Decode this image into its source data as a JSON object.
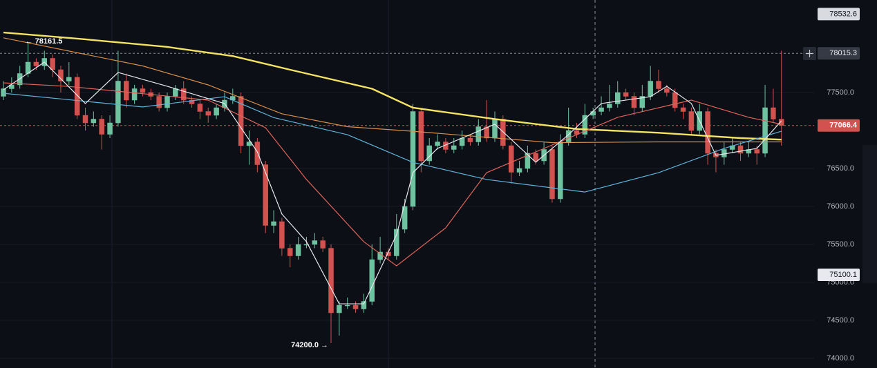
{
  "chart_data": {
    "type": "candlestick",
    "up_color": "#6fc2a0",
    "down_color": "#d2524f",
    "ylim": [
      73873,
      78718
    ],
    "yticks": [
      {
        "value": 77500,
        "label": "77500.0"
      },
      {
        "value": 76500,
        "label": "76500.0"
      },
      {
        "value": 76000,
        "label": "76000.0"
      },
      {
        "value": 75500,
        "label": "75500.0"
      },
      {
        "value": 75000,
        "label": "75000.0"
      },
      {
        "value": 74500,
        "label": "74500.0"
      },
      {
        "value": 74000,
        "label": "74000.0"
      }
    ],
    "grid": true,
    "open": [
      77450,
      77550,
      77600,
      77750,
      77900,
      77850,
      77950,
      77800,
      77650,
      77700,
      77200,
      77100,
      77150,
      76950,
      77100,
      77650,
      77400,
      77550,
      77500,
      77450,
      77300,
      77450,
      77550,
      77400,
      77350,
      77250,
      77200,
      77300,
      77400,
      77450,
      76800,
      76850,
      76550,
      75750,
      75800,
      75450,
      75350,
      75500,
      75500,
      75550,
      75450,
      74600,
      74700,
      74700,
      74650,
      74750,
      75300,
      75400,
      75350,
      75700,
      76000,
      77250,
      76600,
      76800,
      76850,
      76750,
      76800,
      76900,
      76850,
      77050,
      76900,
      77150,
      76800,
      76450,
      76500,
      76700,
      76600,
      76750,
      76100,
      76850,
      77000,
      76950,
      77200,
      77250,
      77300,
      77350,
      77500,
      77450,
      77300,
      77450,
      77650,
      77550,
      77500,
      77300,
      77250,
      77000,
      77250,
      76700,
      76650,
      76750,
      76800,
      76700,
      76750,
      76700,
      77300,
      77150
    ],
    "high": [
      77650,
      77700,
      77850,
      78161.5,
      77950,
      78050,
      78000,
      77850,
      77900,
      77750,
      77300,
      77250,
      77200,
      77200,
      78050,
      77750,
      77600,
      77600,
      77550,
      77500,
      77500,
      77600,
      77650,
      77450,
      77400,
      77300,
      77350,
      77500,
      77550,
      77500,
      77000,
      76900,
      76600,
      75950,
      75850,
      75500,
      75600,
      75600,
      75650,
      75600,
      75500,
      74750,
      74800,
      74750,
      74850,
      75500,
      75600,
      75450,
      75900,
      76100,
      77350,
      77300,
      76900,
      76950,
      76900,
      76900,
      77000,
      76950,
      77150,
      77400,
      77250,
      77200,
      76850,
      76600,
      76800,
      76750,
      76850,
      76800,
      76950,
      77300,
      77100,
      77350,
      77300,
      77450,
      77600,
      77650,
      77550,
      77500,
      77600,
      77850,
      77800,
      77600,
      77550,
      77350,
      77300,
      77350,
      77300,
      76750,
      76850,
      76900,
      76850,
      76850,
      76800,
      77600,
      77550,
      78050
    ],
    "low": [
      77400,
      77500,
      77550,
      77700,
      77800,
      77800,
      77700,
      77500,
      77600,
      77150,
      77000,
      77050,
      76750,
      76900,
      77050,
      77300,
      77350,
      77450,
      77400,
      77250,
      77250,
      77400,
      77350,
      77300,
      77150,
      77100,
      77150,
      77250,
      77350,
      76700,
      76550,
      76450,
      75650,
      75650,
      75350,
      75200,
      75300,
      75450,
      75450,
      75400,
      74200,
      74300,
      74650,
      74600,
      74600,
      74700,
      75250,
      75300,
      75300,
      75650,
      75950,
      76450,
      76550,
      76750,
      76700,
      76700,
      76750,
      76800,
      76800,
      76850,
      76850,
      76750,
      76300,
      76400,
      76450,
      76550,
      76550,
      76050,
      76050,
      76800,
      76900,
      76900,
      77150,
      77200,
      77250,
      77300,
      77400,
      77200,
      77250,
      77400,
      77500,
      77450,
      77250,
      77150,
      76950,
      76950,
      76550,
      76450,
      76550,
      76700,
      76600,
      76650,
      76550,
      76650,
      77100,
      76800
    ],
    "close": [
      77550,
      77600,
      77750,
      77900,
      77850,
      77950,
      77800,
      77650,
      77700,
      77200,
      77100,
      77150,
      76950,
      77100,
      77650,
      77400,
      77550,
      77500,
      77450,
      77300,
      77450,
      77550,
      77400,
      77350,
      77250,
      77200,
      77300,
      77400,
      77450,
      76800,
      76850,
      76550,
      75750,
      75800,
      75450,
      75350,
      75500,
      75500,
      75550,
      75450,
      74600,
      74700,
      74700,
      74650,
      74750,
      75300,
      75400,
      75350,
      75700,
      76000,
      77250,
      76600,
      76800,
      76850,
      76750,
      76800,
      76900,
      76850,
      77050,
      76900,
      77150,
      76800,
      76450,
      76500,
      76700,
      76600,
      76750,
      76100,
      76850,
      77000,
      76950,
      77200,
      77250,
      77300,
      77350,
      77500,
      77450,
      77300,
      77450,
      77650,
      77550,
      77500,
      77300,
      77250,
      77000,
      77250,
      76700,
      76650,
      76750,
      76800,
      76700,
      76750,
      76700,
      77300,
      77150,
      77066.4
    ],
    "lines": [
      {
        "color": "#f5e463",
        "width": 2.4,
        "x": [
          0,
          10,
          20,
          28,
          35,
          45,
          50,
          60,
          70,
          80,
          90,
          95
        ],
        "values": [
          78290,
          78200,
          78100,
          77980,
          77800,
          77550,
          77300,
          77150,
          77020,
          76970,
          76900,
          76880
        ]
      },
      {
        "color": "#d9904a",
        "width": 1.2,
        "x": [
          0,
          17,
          25,
          34,
          42,
          50,
          67,
          80,
          95
        ],
        "values": [
          78220,
          77850,
          77600,
          77220,
          77050,
          76990,
          76840,
          76850,
          76850
        ]
      },
      {
        "color": "#5fb3d9",
        "width": 1.2,
        "x": [
          0,
          17,
          27,
          33,
          42,
          50,
          59,
          71,
          80,
          88,
          95
        ],
        "values": [
          77490,
          77310,
          77445,
          77170,
          76945,
          76580,
          76355,
          76190,
          76445,
          76764,
          76990
        ]
      },
      {
        "color": "#e0645a",
        "width": 1.2,
        "x": [
          0,
          8,
          25,
          32,
          37,
          44,
          48,
          54,
          59,
          67,
          75,
          84,
          91,
          95
        ],
        "values": [
          77627,
          77580,
          77400,
          77036,
          76355,
          75536,
          75218,
          75718,
          76445,
          76809,
          77173,
          77400,
          77173,
          77082
        ]
      },
      {
        "color": "#e8e8ee",
        "width": 1.2,
        "x": [
          0,
          5,
          10,
          14,
          20,
          27,
          31,
          34,
          37,
          41,
          44,
          48,
          50,
          53,
          60,
          65,
          69,
          73,
          79,
          81,
          84,
          87,
          92,
          95
        ],
        "values": [
          77536,
          77900,
          77355,
          77764,
          77582,
          77355,
          76718,
          75900,
          75536,
          74718,
          74718,
          75627,
          76445,
          76764,
          77082,
          76582,
          76945,
          77355,
          77445,
          77582,
          77355,
          76673,
          76764,
          77127
        ]
      }
    ],
    "annotations": [
      {
        "text": "← 78161.5",
        "value": 78161.5,
        "x": 3
      },
      {
        "text": "74200.0 →",
        "value": 74200,
        "x": 40
      }
    ],
    "price_labels": [
      {
        "value": 78532.6,
        "background": "#d8dae0",
        "color": "#131722"
      },
      {
        "value": 78015.3,
        "background": "#363a45",
        "color": "#e8e8ee"
      },
      {
        "value": 77066.4,
        "background": "#d2524f",
        "color": "#ffffff"
      },
      {
        "value": 75100.1,
        "background": "#e8e9ee",
        "color": "#131722"
      }
    ]
  }
}
